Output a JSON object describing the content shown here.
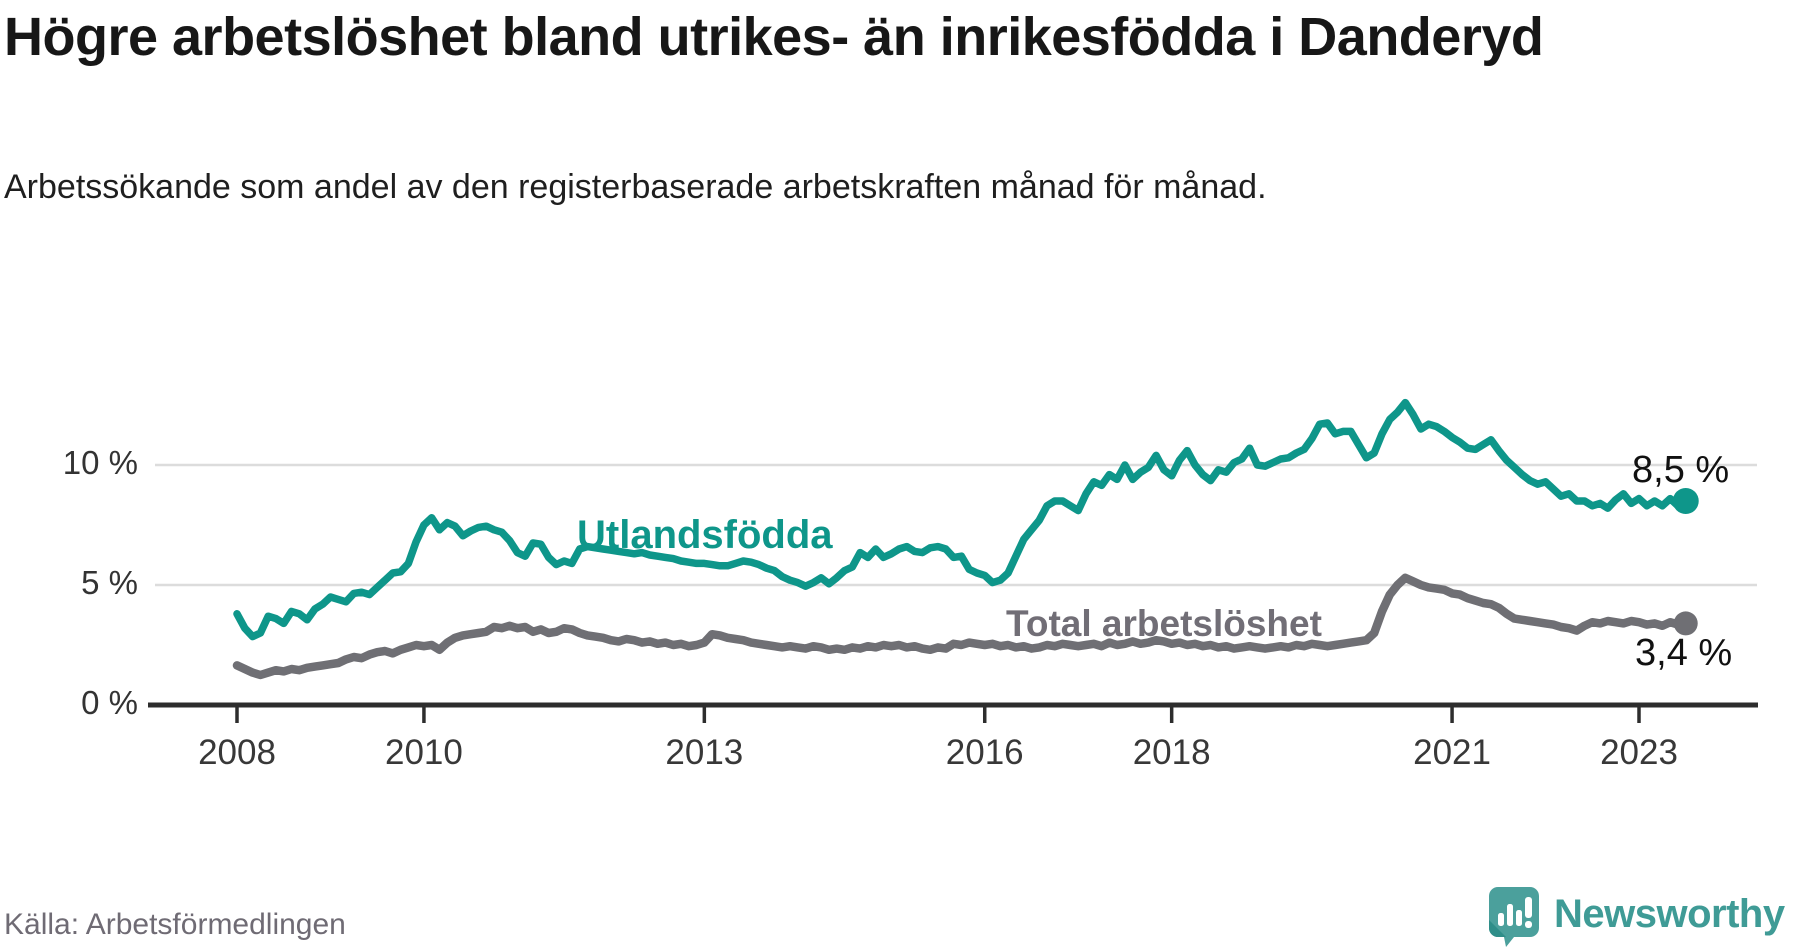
{
  "header": {
    "title": "Högre arbetslöshet bland utrikes- än inrikesfödda i Danderyd",
    "subtitle": "Arbetssökande som andel av den registerbaserade arbetskraften månad för månad."
  },
  "footer": {
    "source": "Källa: Arbetsförmedlingen",
    "brand": "Newsworthy"
  },
  "colors": {
    "foreign_line": "#0E968A",
    "total_line": "#6F6F74",
    "total_label": "#716E76",
    "grid": "#DCDCDC",
    "axis": "#2D2D2D",
    "brand_bubble": "#4BA09C",
    "brand_bubble_fold": "#2F8E89",
    "brand_text": "#3F9B96"
  },
  "chart_data": {
    "type": "line",
    "title": "Högre arbetslöshet bland utrikes- än inrikesfödda i Danderyd",
    "xlabel": "",
    "ylabel": "Arbetssökande som andel av den registerbaserade arbetskraften",
    "x_start": "2008-01",
    "x_end": "2023-07",
    "x_unit": "month",
    "ylim": [
      0,
      13.5
    ],
    "grid": "horizontal",
    "legend_position": "inline-labels",
    "y_ticks": [
      {
        "label": "0 %",
        "value": 0
      },
      {
        "label": "5 %",
        "value": 5
      },
      {
        "label": "10 %",
        "value": 10
      }
    ],
    "x_ticks": [
      {
        "label": "2008",
        "month_index": 0
      },
      {
        "label": "2010",
        "month_index": 24
      },
      {
        "label": "2013",
        "month_index": 60
      },
      {
        "label": "2016",
        "month_index": 96
      },
      {
        "label": "2018",
        "month_index": 120
      },
      {
        "label": "2021",
        "month_index": 156
      },
      {
        "label": "2023",
        "month_index": 180
      }
    ],
    "series": [
      {
        "name": "Utlandsfödda",
        "color": "#0E968A",
        "end_label": "8,5 %",
        "end_value": 8.5,
        "values": [
          3.8,
          3.2,
          2.85,
          3.0,
          3.7,
          3.6,
          3.4,
          3.9,
          3.8,
          3.55,
          4.0,
          4.2,
          4.5,
          4.4,
          4.3,
          4.65,
          4.7,
          4.6,
          4.9,
          5.2,
          5.5,
          5.55,
          5.9,
          6.8,
          7.5,
          7.8,
          7.3,
          7.6,
          7.45,
          7.05,
          7.25,
          7.4,
          7.45,
          7.3,
          7.2,
          6.85,
          6.35,
          6.2,
          6.75,
          6.7,
          6.15,
          5.85,
          6.0,
          5.9,
          6.5,
          6.6,
          6.55,
          6.5,
          6.45,
          6.4,
          6.35,
          6.3,
          6.35,
          6.25,
          6.2,
          6.15,
          6.1,
          6.0,
          5.95,
          5.9,
          5.9,
          5.85,
          5.8,
          5.8,
          5.9,
          6.0,
          5.95,
          5.85,
          5.7,
          5.6,
          5.35,
          5.2,
          5.1,
          4.95,
          5.1,
          5.3,
          5.05,
          5.3,
          5.6,
          5.75,
          6.35,
          6.15,
          6.5,
          6.15,
          6.3,
          6.5,
          6.6,
          6.4,
          6.35,
          6.55,
          6.6,
          6.5,
          6.15,
          6.2,
          5.65,
          5.5,
          5.4,
          5.1,
          5.2,
          5.5,
          6.2,
          6.9,
          7.3,
          7.7,
          8.3,
          8.5,
          8.5,
          8.3,
          8.1,
          8.8,
          9.3,
          9.15,
          9.6,
          9.4,
          10.0,
          9.4,
          9.7,
          9.9,
          10.4,
          9.8,
          9.55,
          10.2,
          10.6,
          10.0,
          9.6,
          9.35,
          9.8,
          9.7,
          10.1,
          10.25,
          10.7,
          10.0,
          9.95,
          10.1,
          10.25,
          10.3,
          10.5,
          10.65,
          11.1,
          11.7,
          11.75,
          11.3,
          11.4,
          11.4,
          10.85,
          10.3,
          10.5,
          11.3,
          11.9,
          12.2,
          12.6,
          12.1,
          11.5,
          11.7,
          11.6,
          11.4,
          11.15,
          10.95,
          10.7,
          10.65,
          10.85,
          11.05,
          10.6,
          10.2,
          9.9,
          9.6,
          9.35,
          9.2,
          9.3,
          9.0,
          8.7,
          8.8,
          8.5,
          8.5,
          8.3,
          8.4,
          8.2,
          8.55,
          8.8,
          8.4,
          8.6,
          8.3,
          8.5,
          8.3,
          8.6,
          8.3,
          8.5
        ]
      },
      {
        "name": "Total arbetslöshet",
        "color": "#6F6F74",
        "end_label": "3,4 %",
        "end_value": 3.4,
        "values": [
          1.65,
          1.5,
          1.35,
          1.25,
          1.35,
          1.45,
          1.4,
          1.5,
          1.45,
          1.55,
          1.6,
          1.65,
          1.7,
          1.75,
          1.9,
          2.0,
          1.95,
          2.1,
          2.2,
          2.25,
          2.15,
          2.3,
          2.4,
          2.5,
          2.45,
          2.5,
          2.3,
          2.6,
          2.8,
          2.9,
          2.95,
          3.0,
          3.05,
          3.25,
          3.2,
          3.3,
          3.2,
          3.25,
          3.05,
          3.15,
          3.0,
          3.05,
          3.2,
          3.15,
          3.0,
          2.9,
          2.85,
          2.8,
          2.7,
          2.65,
          2.75,
          2.7,
          2.6,
          2.65,
          2.55,
          2.6,
          2.5,
          2.55,
          2.45,
          2.5,
          2.6,
          2.95,
          2.9,
          2.8,
          2.75,
          2.7,
          2.6,
          2.55,
          2.5,
          2.45,
          2.4,
          2.45,
          2.4,
          2.35,
          2.45,
          2.4,
          2.3,
          2.35,
          2.3,
          2.4,
          2.35,
          2.45,
          2.4,
          2.5,
          2.45,
          2.5,
          2.4,
          2.45,
          2.35,
          2.3,
          2.4,
          2.35,
          2.55,
          2.5,
          2.6,
          2.55,
          2.5,
          2.55,
          2.45,
          2.5,
          2.4,
          2.45,
          2.35,
          2.4,
          2.5,
          2.45,
          2.55,
          2.5,
          2.45,
          2.5,
          2.55,
          2.45,
          2.6,
          2.5,
          2.55,
          2.65,
          2.55,
          2.6,
          2.7,
          2.65,
          2.55,
          2.6,
          2.5,
          2.55,
          2.45,
          2.5,
          2.4,
          2.45,
          2.35,
          2.4,
          2.45,
          2.4,
          2.35,
          2.4,
          2.45,
          2.4,
          2.5,
          2.45,
          2.55,
          2.5,
          2.45,
          2.5,
          2.55,
          2.6,
          2.65,
          2.7,
          3.0,
          3.9,
          4.6,
          5.0,
          5.3,
          5.15,
          5.0,
          4.9,
          4.85,
          4.8,
          4.65,
          4.6,
          4.45,
          4.35,
          4.25,
          4.2,
          4.05,
          3.8,
          3.6,
          3.55,
          3.5,
          3.45,
          3.4,
          3.35,
          3.25,
          3.2,
          3.1,
          3.3,
          3.45,
          3.4,
          3.5,
          3.45,
          3.4,
          3.5,
          3.45,
          3.35,
          3.4,
          3.3,
          3.45,
          3.35,
          3.4
        ]
      }
    ]
  }
}
